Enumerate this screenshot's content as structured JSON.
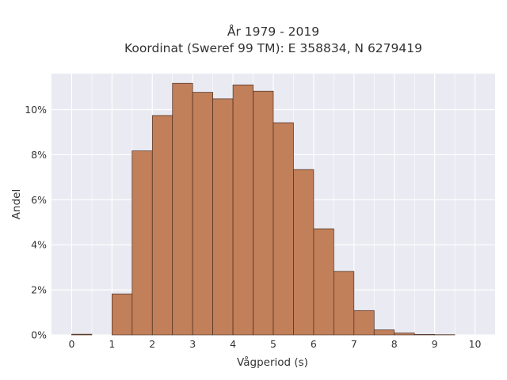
{
  "chart_data": {
    "type": "bar",
    "title": "År 1979 - 2019",
    "subtitle": "Koordinat (Sweref 99 TM): E 358834, N 6279419",
    "xlabel": "Vågperiod (s)",
    "ylabel": "Andel",
    "x_ticks": [
      "0",
      "1",
      "2",
      "3",
      "4",
      "5",
      "6",
      "7",
      "8",
      "9",
      "10"
    ],
    "y_ticks": [
      "0%",
      "2%",
      "4%",
      "6%",
      "8%",
      "10%"
    ],
    "xlim": [
      -0.5,
      10.5
    ],
    "ylim": [
      0,
      11.6
    ],
    "bin_width": 0.5,
    "bins": [
      {
        "x0": 0.0,
        "value": 0.03
      },
      {
        "x0": 0.5,
        "value": 0.0
      },
      {
        "x0": 1.0,
        "value": 1.82
      },
      {
        "x0": 1.5,
        "value": 8.17
      },
      {
        "x0": 2.0,
        "value": 9.74
      },
      {
        "x0": 2.5,
        "value": 11.17
      },
      {
        "x0": 3.0,
        "value": 10.77
      },
      {
        "x0": 3.5,
        "value": 10.48
      },
      {
        "x0": 4.0,
        "value": 11.1
      },
      {
        "x0": 4.5,
        "value": 10.82
      },
      {
        "x0": 5.0,
        "value": 9.42
      },
      {
        "x0": 5.5,
        "value": 7.34
      },
      {
        "x0": 6.0,
        "value": 4.71
      },
      {
        "x0": 6.5,
        "value": 2.82
      },
      {
        "x0": 7.0,
        "value": 1.08
      },
      {
        "x0": 7.5,
        "value": 0.22
      },
      {
        "x0": 8.0,
        "value": 0.08
      },
      {
        "x0": 8.5,
        "value": 0.02
      },
      {
        "x0": 9.0,
        "value": 0.01
      }
    ],
    "bar_color": "#c17f5a",
    "bar_edge_color": "#4a2e20",
    "plot_background": "#eaeaf2",
    "grid": true,
    "grid_color": "#ffffff"
  }
}
